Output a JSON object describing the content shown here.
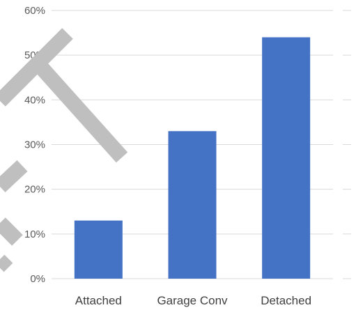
{
  "chart_data": {
    "type": "bar",
    "categories": [
      "Attached",
      "Garage Conv",
      "Detached"
    ],
    "values": [
      13,
      33,
      54
    ],
    "value_unit": "%",
    "ylim": [
      0,
      60
    ],
    "yticks": [
      "0%",
      "10%",
      "20%",
      "30%",
      "40%",
      "50%",
      "60%"
    ],
    "title": "",
    "xlabel": "",
    "ylabel": "",
    "grid": true,
    "legend": "none",
    "bar_color": "#4472C4",
    "grid_color": "#D9D9D9",
    "watermark_color": "#BFBFBF"
  }
}
